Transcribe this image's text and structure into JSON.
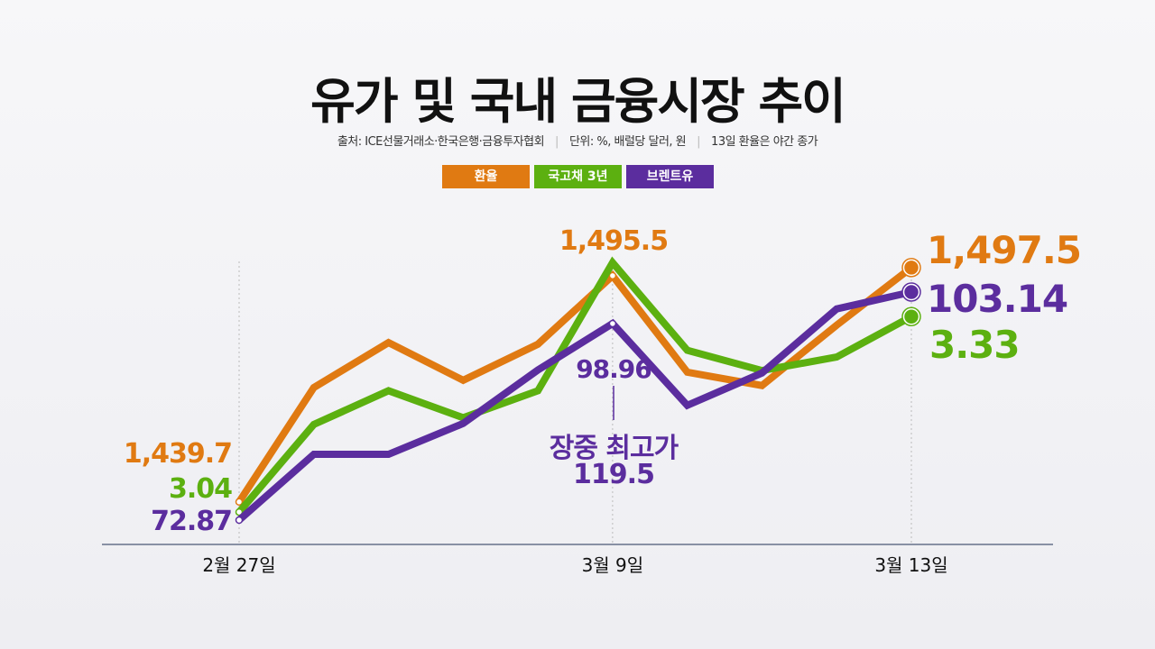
{
  "title": "유가 및 국내 금융시장 추이",
  "subtitle": {
    "source": "출처: ICE선물거래소·한국은행·금융투자협회",
    "unit": "단위: %, 배럴당 달러, 원",
    "note": "13일 환율은 야간 종가"
  },
  "chart_data": {
    "type": "line",
    "title": "유가 및 국내 금융시장 추이",
    "x": [
      0,
      1,
      2,
      3,
      4,
      5,
      6,
      7,
      8,
      9
    ],
    "x_ticks": [
      {
        "index": 0,
        "label": "2월 27일"
      },
      {
        "index": 5,
        "label": "3월 9일"
      },
      {
        "index": 9,
        "label": "3월 13일"
      }
    ],
    "legend_position": "top-center",
    "grid": false,
    "series": [
      {
        "name": "환율",
        "color": "#e07a12",
        "values": [
          1439.7,
          1467.9,
          1479.0,
          1469.7,
          1478.6,
          1495.5,
          1471.7,
          1468.4,
          1483.3,
          1497.5
        ],
        "ylim": [
          1429.2,
          1505.7
        ],
        "labels": {
          "start": "1,439.7",
          "peak": "1,495.5",
          "end": "1,497.5"
        }
      },
      {
        "name": "국고채 3년",
        "color": "#5cb010",
        "values": [
          3.04,
          3.17,
          3.22,
          3.18,
          3.22,
          3.41,
          3.28,
          3.25,
          3.27,
          3.33
        ],
        "ylim": [
          2.992,
          3.452
        ],
        "labels": {
          "start": "3.04",
          "end": "3.33"
        }
      },
      {
        "name": "브렌트유",
        "color": "#5b2d9e",
        "values": [
          72.87,
          81.6,
          81.6,
          85.7,
          92.8,
          98.96,
          88.1,
          92.4,
          100.9,
          103.14
        ],
        "ylim": [
          69.64,
          110.8
        ],
        "labels": {
          "start": "72.87",
          "peak": "98.96",
          "end": "103.14"
        }
      }
    ],
    "annotation": {
      "label": "장중 최고가",
      "value": "119.5"
    }
  }
}
